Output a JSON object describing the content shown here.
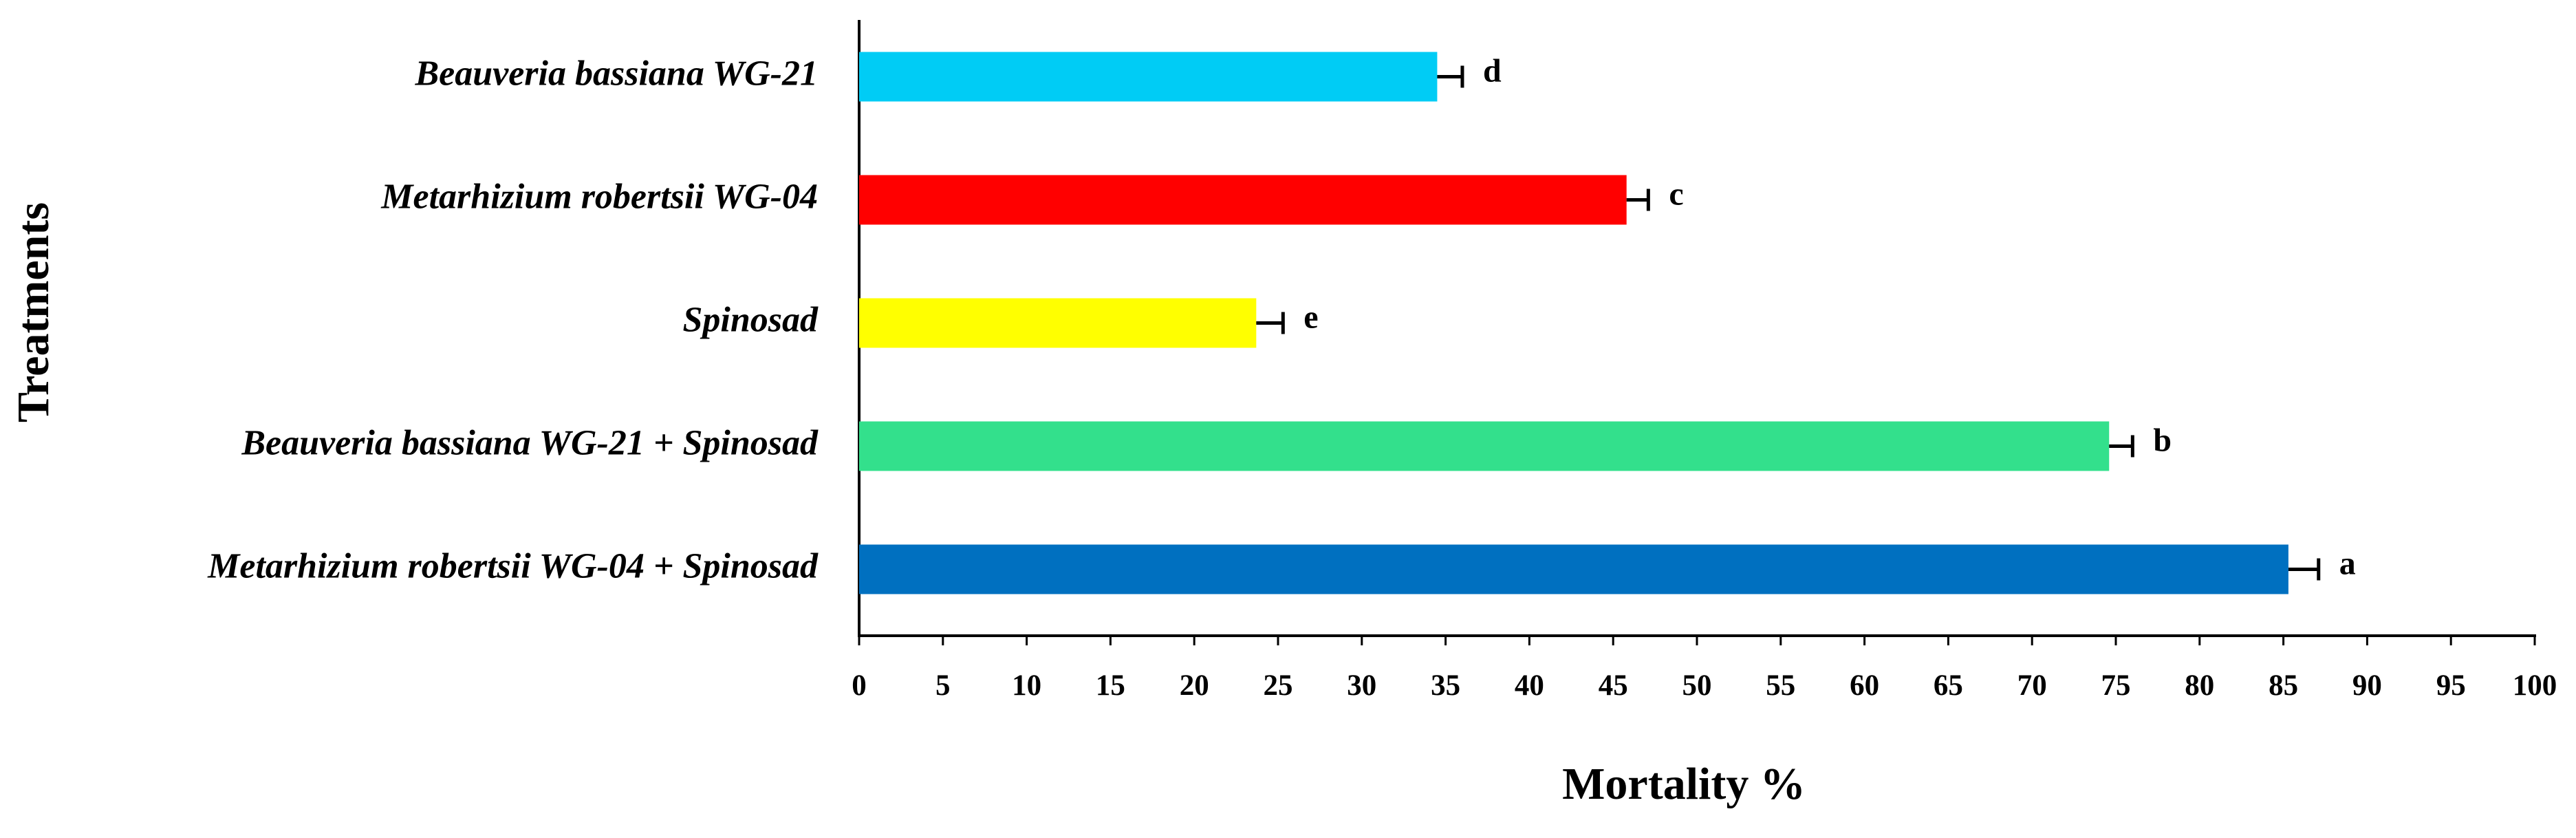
{
  "chart_data": {
    "type": "hbar",
    "xlabel": "Mortality %",
    "ylabel": "Treatments",
    "categories": [
      "Beauveria bassiana WG-21",
      "Metarhizium robertsii WG-04",
      "Spinosad",
      "Beauveria bassiana WG-21 + Spinosad",
      "Metarhizium robertsii WG-04 + Spinosad"
    ],
    "values": [
      34.5,
      45.8,
      23.7,
      74.6,
      85.3
    ],
    "errors": [
      1.5,
      1.3,
      1.6,
      1.4,
      1.8
    ],
    "letters": [
      "d",
      "c",
      "e",
      "b",
      "a"
    ],
    "colors": [
      "#00ccf5",
      "#ff0000",
      "#ffff00",
      "#33e08c",
      "#0070c0"
    ],
    "xlim": [
      0,
      100
    ],
    "xticks": [
      0,
      5,
      10,
      15,
      20,
      25,
      30,
      35,
      40,
      45,
      50,
      55,
      60,
      65,
      70,
      75,
      80,
      85,
      90,
      95,
      100
    ],
    "grid": false
  }
}
